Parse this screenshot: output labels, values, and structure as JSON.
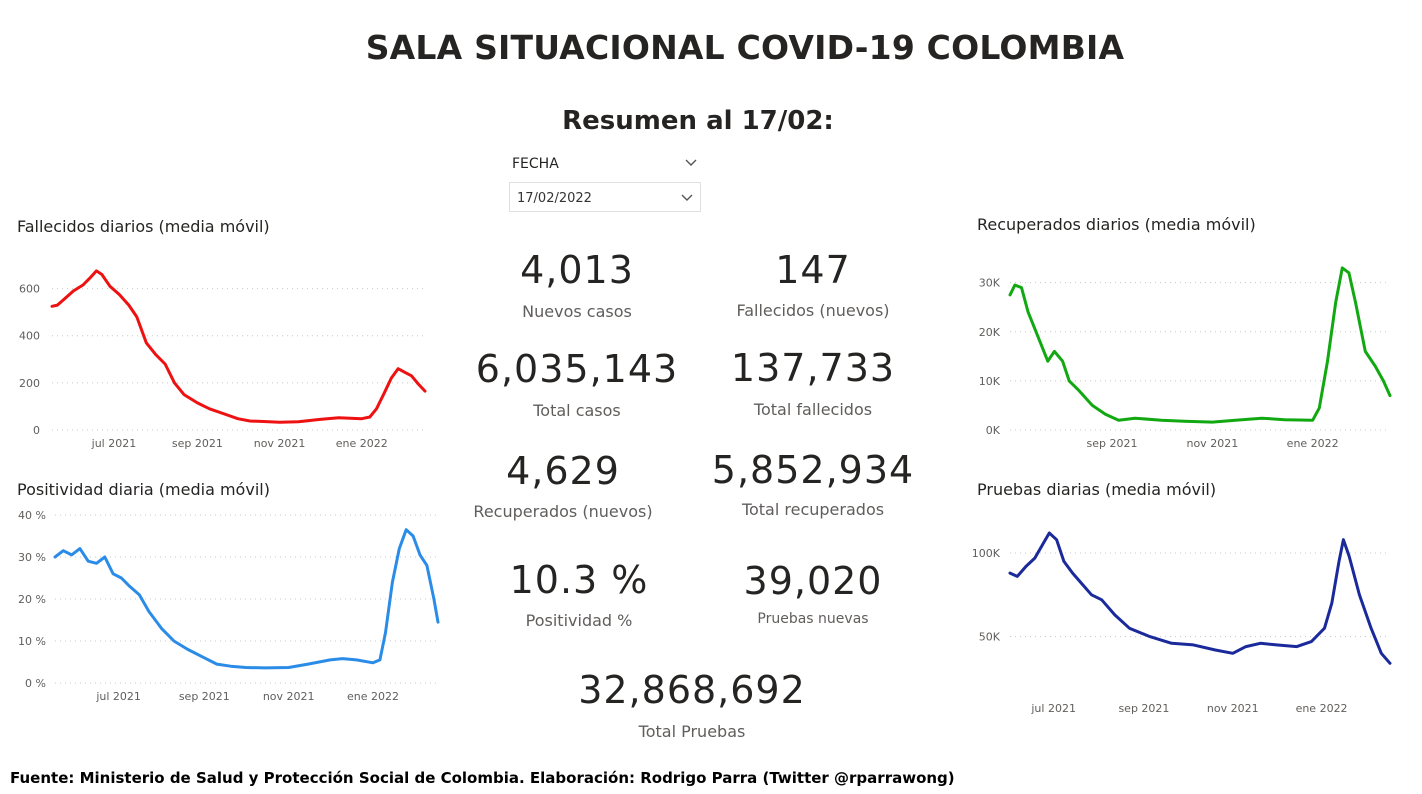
{
  "header": {
    "title": "SALA SITUACIONAL COVID-19 COLOMBIA",
    "subtitle": "Resumen al 17/02:"
  },
  "slicer": {
    "label": "FECHA",
    "value": "17/02/2022",
    "toggle_icon": "chevron-down-icon",
    "dropdown_icon": "chevron-down-icon"
  },
  "kpis": [
    {
      "value": "4,013",
      "label": "Nuevos casos"
    },
    {
      "value": "147",
      "label": "Fallecidos (nuevos)"
    },
    {
      "value": "6,035,143",
      "label": "Total casos"
    },
    {
      "value": "137,733",
      "label": "Total fallecidos"
    },
    {
      "value": "4,629",
      "label": "Recuperados (nuevos)"
    },
    {
      "value": "5,852,934",
      "label": "Total recuperados"
    },
    {
      "value": "10.3 %",
      "label": "Positividad %"
    },
    {
      "value": "39,020",
      "label": "Pruebas nuevas"
    },
    {
      "value": "32,868,692",
      "label": "Total Pruebas"
    }
  ],
  "footer": "Fuente: Ministerio de Salud y Protección Social de Colombia. Elaboración: Rodrigo Parra (Twitter @rparrawong)",
  "chart_data": [
    {
      "id": "fallecidos",
      "type": "line",
      "title": "Fallecidos diarios (media móvil)",
      "color": "#ee1111",
      "x_domain": [
        "2021-05-16",
        "2022-02-17"
      ],
      "x_ticks": [
        {
          "date": "2021-07-01",
          "label": "jul 2021"
        },
        {
          "date": "2021-09-01",
          "label": "sep 2021"
        },
        {
          "date": "2021-11-01",
          "label": "nov 2021"
        },
        {
          "date": "2022-01-01",
          "label": "ene 2022"
        }
      ],
      "ylim": [
        0,
        700
      ],
      "y_ticks": [
        {
          "v": 0,
          "label": "0"
        },
        {
          "v": 200,
          "label": "200"
        },
        {
          "v": 400,
          "label": "400"
        },
        {
          "v": 600,
          "label": "600"
        }
      ],
      "grid": true,
      "points": [
        [
          "2021-05-16",
          525
        ],
        [
          "2021-05-20",
          530
        ],
        [
          "2021-05-25",
          555
        ],
        [
          "2021-06-01",
          590
        ],
        [
          "2021-06-08",
          615
        ],
        [
          "2021-06-14",
          650
        ],
        [
          "2021-06-18",
          675
        ],
        [
          "2021-06-22",
          660
        ],
        [
          "2021-06-28",
          610
        ],
        [
          "2021-07-05",
          575
        ],
        [
          "2021-07-12",
          530
        ],
        [
          "2021-07-18",
          480
        ],
        [
          "2021-07-25",
          370
        ],
        [
          "2021-08-01",
          320
        ],
        [
          "2021-08-08",
          280
        ],
        [
          "2021-08-15",
          200
        ],
        [
          "2021-08-22",
          150
        ],
        [
          "2021-09-01",
          115
        ],
        [
          "2021-09-10",
          90
        ],
        [
          "2021-09-20",
          70
        ],
        [
          "2021-10-01",
          48
        ],
        [
          "2021-10-10",
          38
        ],
        [
          "2021-10-20",
          36
        ],
        [
          "2021-11-01",
          33
        ],
        [
          "2021-11-15",
          35
        ],
        [
          "2021-12-01",
          45
        ],
        [
          "2021-12-15",
          52
        ],
        [
          "2022-01-01",
          48
        ],
        [
          "2022-01-07",
          55
        ],
        [
          "2022-01-12",
          90
        ],
        [
          "2022-01-18",
          160
        ],
        [
          "2022-01-23",
          220
        ],
        [
          "2022-01-28",
          260
        ],
        [
          "2022-02-02",
          245
        ],
        [
          "2022-02-07",
          230
        ],
        [
          "2022-02-12",
          195
        ],
        [
          "2022-02-17",
          165
        ]
      ]
    },
    {
      "id": "positividad",
      "type": "line",
      "title": "Positividad diaria (media móvil)",
      "color": "#2b8ce8",
      "x_domain": [
        "2021-05-16",
        "2022-02-17"
      ],
      "x_ticks": [
        {
          "date": "2021-07-01",
          "label": "jul 2021"
        },
        {
          "date": "2021-09-01",
          "label": "sep 2021"
        },
        {
          "date": "2021-11-01",
          "label": "nov 2021"
        },
        {
          "date": "2022-01-01",
          "label": "ene 2022"
        }
      ],
      "ylim": [
        0,
        40
      ],
      "y_ticks": [
        {
          "v": 0,
          "label": "0 %"
        },
        {
          "v": 10,
          "label": "10 %"
        },
        {
          "v": 20,
          "label": "20 %"
        },
        {
          "v": 30,
          "label": "30 %"
        },
        {
          "v": 40,
          "label": "40 %"
        }
      ],
      "grid": true,
      "points": [
        [
          "2021-05-16",
          30
        ],
        [
          "2021-05-22",
          31.5
        ],
        [
          "2021-05-28",
          30.5
        ],
        [
          "2021-06-03",
          32
        ],
        [
          "2021-06-09",
          29
        ],
        [
          "2021-06-15",
          28.5
        ],
        [
          "2021-06-21",
          30
        ],
        [
          "2021-06-27",
          26
        ],
        [
          "2021-07-03",
          25
        ],
        [
          "2021-07-09",
          23
        ],
        [
          "2021-07-16",
          21
        ],
        [
          "2021-07-23",
          17
        ],
        [
          "2021-08-01",
          13
        ],
        [
          "2021-08-10",
          10
        ],
        [
          "2021-08-20",
          8
        ],
        [
          "2021-09-01",
          6
        ],
        [
          "2021-09-10",
          4.5
        ],
        [
          "2021-09-20",
          4
        ],
        [
          "2021-10-01",
          3.7
        ],
        [
          "2021-10-15",
          3.6
        ],
        [
          "2021-11-01",
          3.7
        ],
        [
          "2021-11-15",
          4.5
        ],
        [
          "2021-12-01",
          5.5
        ],
        [
          "2021-12-10",
          5.8
        ],
        [
          "2021-12-20",
          5.5
        ],
        [
          "2022-01-01",
          4.8
        ],
        [
          "2022-01-06",
          5.5
        ],
        [
          "2022-01-10",
          12
        ],
        [
          "2022-01-15",
          24
        ],
        [
          "2022-01-20",
          32
        ],
        [
          "2022-01-25",
          36.5
        ],
        [
          "2022-01-30",
          35
        ],
        [
          "2022-02-04",
          30.5
        ],
        [
          "2022-02-09",
          28
        ],
        [
          "2022-02-14",
          20
        ],
        [
          "2022-02-17",
          14.5
        ]
      ]
    },
    {
      "id": "recuperados",
      "type": "line",
      "title": "Recuperados diarios (media móvil)",
      "color": "#12a812",
      "x_domain": [
        "2021-07-01",
        "2022-02-17"
      ],
      "x_ticks": [
        {
          "date": "2021-09-01",
          "label": "sep 2021"
        },
        {
          "date": "2021-11-01",
          "label": "nov 2021"
        },
        {
          "date": "2022-01-01",
          "label": "ene 2022"
        }
      ],
      "ylim": [
        0,
        34000
      ],
      "y_ticks": [
        {
          "v": 0,
          "label": "0K"
        },
        {
          "v": 10000,
          "label": "10K"
        },
        {
          "v": 20000,
          "label": "20K"
        },
        {
          "v": 30000,
          "label": "30K"
        }
      ],
      "grid": true,
      "points": [
        [
          "2021-07-01",
          27500
        ],
        [
          "2021-07-04",
          29500
        ],
        [
          "2021-07-08",
          29000
        ],
        [
          "2021-07-12",
          24000
        ],
        [
          "2021-07-18",
          19000
        ],
        [
          "2021-07-24",
          14000
        ],
        [
          "2021-07-28",
          16000
        ],
        [
          "2021-08-02",
          14000
        ],
        [
          "2021-08-06",
          10000
        ],
        [
          "2021-08-12",
          8000
        ],
        [
          "2021-08-20",
          5000
        ],
        [
          "2021-08-28",
          3200
        ],
        [
          "2021-09-05",
          2000
        ],
        [
          "2021-09-15",
          2400
        ],
        [
          "2021-10-01",
          2000
        ],
        [
          "2021-10-15",
          1800
        ],
        [
          "2021-11-01",
          1600
        ],
        [
          "2021-11-15",
          2000
        ],
        [
          "2021-12-01",
          2400
        ],
        [
          "2021-12-15",
          2100
        ],
        [
          "2022-01-01",
          2000
        ],
        [
          "2022-01-05",
          4500
        ],
        [
          "2022-01-10",
          14000
        ],
        [
          "2022-01-15",
          26000
        ],
        [
          "2022-01-19",
          33000
        ],
        [
          "2022-01-23",
          32000
        ],
        [
          "2022-01-27",
          26000
        ],
        [
          "2022-02-02",
          16000
        ],
        [
          "2022-02-08",
          13000
        ],
        [
          "2022-02-13",
          10000
        ],
        [
          "2022-02-17",
          7000
        ]
      ]
    },
    {
      "id": "pruebas",
      "type": "line",
      "title": "Pruebas diarias (media móvil)",
      "color": "#1a2a9a",
      "x_domain": [
        "2021-06-01",
        "2022-02-17"
      ],
      "x_ticks": [
        {
          "date": "2021-07-01",
          "label": "jul 2021"
        },
        {
          "date": "2021-09-01",
          "label": "sep 2021"
        },
        {
          "date": "2021-11-01",
          "label": "nov 2021"
        },
        {
          "date": "2022-01-01",
          "label": "ene 2022"
        }
      ],
      "ylim": [
        30000,
        115000
      ],
      "y_ticks": [
        {
          "v": 50000,
          "label": "50K"
        },
        {
          "v": 100000,
          "label": "100K"
        }
      ],
      "grid": true,
      "points": [
        [
          "2021-06-01",
          88000
        ],
        [
          "2021-06-06",
          86000
        ],
        [
          "2021-06-12",
          92000
        ],
        [
          "2021-06-18",
          97000
        ],
        [
          "2021-06-24",
          106000
        ],
        [
          "2021-06-28",
          112000
        ],
        [
          "2021-07-03",
          108000
        ],
        [
          "2021-07-08",
          95000
        ],
        [
          "2021-07-14",
          88000
        ],
        [
          "2021-07-20",
          82000
        ],
        [
          "2021-07-27",
          75000
        ],
        [
          "2021-08-03",
          72000
        ],
        [
          "2021-08-12",
          63000
        ],
        [
          "2021-08-22",
          55000
        ],
        [
          "2021-09-05",
          50000
        ],
        [
          "2021-09-20",
          46000
        ],
        [
          "2021-10-05",
          45000
        ],
        [
          "2021-10-20",
          42000
        ],
        [
          "2021-11-01",
          40000
        ],
        [
          "2021-11-10",
          44000
        ],
        [
          "2021-11-20",
          46000
        ],
        [
          "2021-12-01",
          45000
        ],
        [
          "2021-12-15",
          44000
        ],
        [
          "2021-12-25",
          47000
        ],
        [
          "2022-01-03",
          55000
        ],
        [
          "2022-01-08",
          70000
        ],
        [
          "2022-01-13",
          95000
        ],
        [
          "2022-01-16",
          108000
        ],
        [
          "2022-01-20",
          98000
        ],
        [
          "2022-01-27",
          75000
        ],
        [
          "2022-02-04",
          55000
        ],
        [
          "2022-02-11",
          40000
        ],
        [
          "2022-02-17",
          34000
        ]
      ]
    }
  ]
}
